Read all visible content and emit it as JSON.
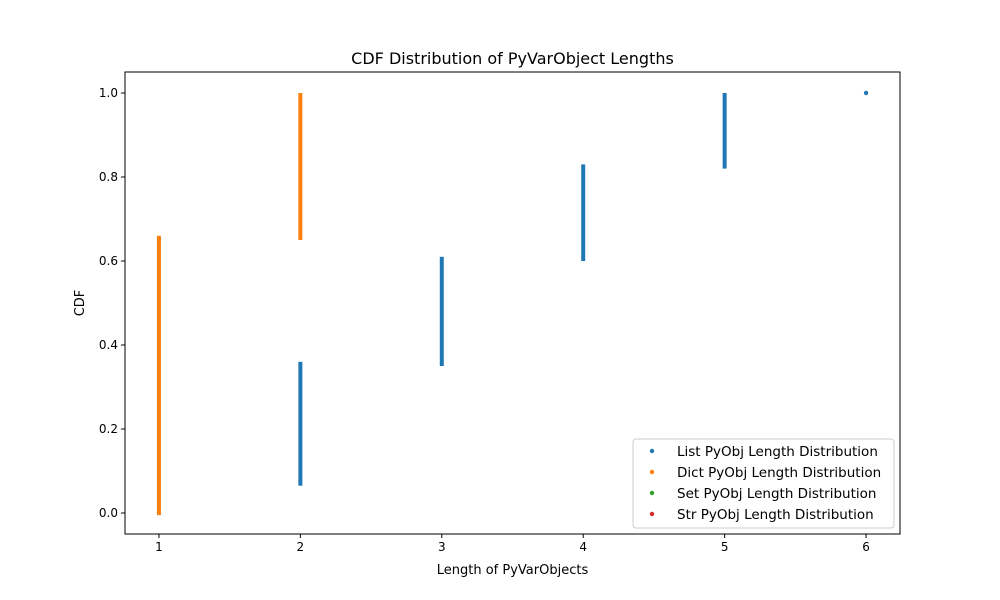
{
  "chart_data": {
    "type": "scatter",
    "title": "CDF Distribution of PyVarObject Lengths",
    "xlabel": "Length of PyVarObjects",
    "ylabel": "CDF",
    "xlim": [
      0.76,
      6.24
    ],
    "ylim": [
      -0.05,
      1.05
    ],
    "xticks": [
      1,
      2,
      3,
      4,
      5,
      6
    ],
    "yticks": [
      0.0,
      0.2,
      0.4,
      0.6,
      0.8,
      1.0
    ],
    "ytick_labels": [
      "0.0",
      "0.2",
      "0.4",
      "0.6",
      "0.8",
      "1.0"
    ],
    "grid": false,
    "legend_position": "lower-right",
    "series": [
      {
        "name": "List PyObj Length Distribution",
        "color": "#1f77b4",
        "segments": [
          {
            "x": 2,
            "y_start": 0.065,
            "y_end": 0.36
          },
          {
            "x": 3,
            "y_start": 0.35,
            "y_end": 0.61
          },
          {
            "x": 4,
            "y_start": 0.6,
            "y_end": 0.83
          },
          {
            "x": 5,
            "y_start": 0.82,
            "y_end": 1.0
          },
          {
            "x": 6,
            "y_start": 1.0,
            "y_end": 1.0
          }
        ]
      },
      {
        "name": "Dict PyObj Length Distribution",
        "color": "#ff7f0e",
        "segments": [
          {
            "x": 1,
            "y_start": -0.005,
            "y_end": 0.66
          },
          {
            "x": 2,
            "y_start": 0.65,
            "y_end": 1.0
          }
        ]
      },
      {
        "name": "Set PyObj Length Distribution",
        "color": "#2ca02c",
        "segments": []
      },
      {
        "name": "Str PyObj Length Distribution",
        "color": "#d62728",
        "segments": []
      }
    ]
  }
}
